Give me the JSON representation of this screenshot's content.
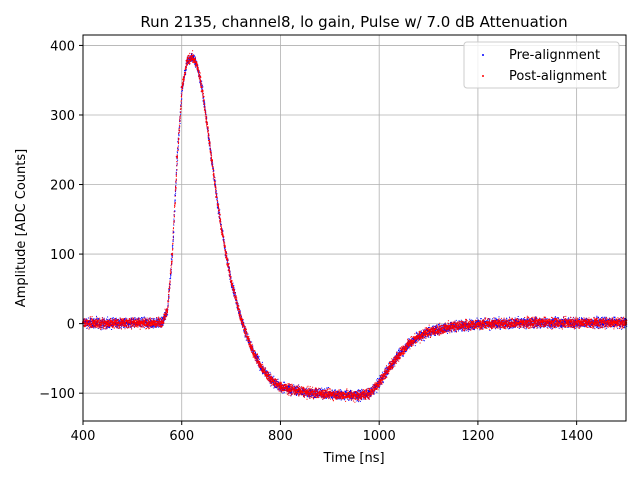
{
  "chart_data": {
    "type": "scatter",
    "title": "Run 2135, channel8, lo gain, Pulse w/ 7.0 dB Attenuation",
    "xlabel": "Time [ns]",
    "ylabel": "Amplitude [ADC Counts]",
    "xlim": [
      400,
      1500
    ],
    "ylim": [
      -140,
      415
    ],
    "xticks": [
      400,
      600,
      800,
      1000,
      1200,
      1400
    ],
    "yticks": [
      -100,
      0,
      100,
      200,
      300,
      400
    ],
    "grid": true,
    "legend_position": "top-right",
    "series": [
      {
        "name": "Pre-alignment",
        "color": "#0000ff",
        "marker": "point",
        "points": [
          [
            400,
            2
          ],
          [
            450,
            1
          ],
          [
            500,
            2
          ],
          [
            540,
            1
          ],
          [
            560,
            3
          ],
          [
            570,
            20
          ],
          [
            580,
            100
          ],
          [
            590,
            240
          ],
          [
            600,
            340
          ],
          [
            610,
            378
          ],
          [
            620,
            385
          ],
          [
            630,
            372
          ],
          [
            640,
            340
          ],
          [
            650,
            290
          ],
          [
            660,
            235
          ],
          [
            670,
            182
          ],
          [
            680,
            136
          ],
          [
            690,
            95
          ],
          [
            700,
            60
          ],
          [
            720,
            6
          ],
          [
            740,
            -35
          ],
          [
            760,
            -62
          ],
          [
            780,
            -80
          ],
          [
            800,
            -91
          ],
          [
            850,
            -98
          ],
          [
            900,
            -101
          ],
          [
            950,
            -103
          ],
          [
            980,
            -100
          ],
          [
            1000,
            -83
          ],
          [
            1020,
            -62
          ],
          [
            1040,
            -43
          ],
          [
            1060,
            -28
          ],
          [
            1080,
            -18
          ],
          [
            1100,
            -11
          ],
          [
            1150,
            -3
          ],
          [
            1200,
            0
          ],
          [
            1300,
            2
          ],
          [
            1400,
            2
          ],
          [
            1500,
            2
          ]
        ]
      },
      {
        "name": "Post-alignment",
        "color": "#ff0000",
        "marker": "point",
        "points": [
          [
            400,
            2
          ],
          [
            450,
            1
          ],
          [
            500,
            2
          ],
          [
            540,
            1
          ],
          [
            560,
            3
          ],
          [
            570,
            20
          ],
          [
            580,
            100
          ],
          [
            590,
            240
          ],
          [
            600,
            340
          ],
          [
            610,
            378
          ],
          [
            620,
            385
          ],
          [
            630,
            372
          ],
          [
            640,
            340
          ],
          [
            650,
            290
          ],
          [
            660,
            235
          ],
          [
            670,
            182
          ],
          [
            680,
            136
          ],
          [
            690,
            95
          ],
          [
            700,
            60
          ],
          [
            720,
            6
          ],
          [
            740,
            -35
          ],
          [
            760,
            -62
          ],
          [
            780,
            -80
          ],
          [
            800,
            -91
          ],
          [
            850,
            -98
          ],
          [
            900,
            -101
          ],
          [
            950,
            -103
          ],
          [
            980,
            -100
          ],
          [
            1000,
            -83
          ],
          [
            1020,
            -62
          ],
          [
            1040,
            -43
          ],
          [
            1060,
            -28
          ],
          [
            1080,
            -18
          ],
          [
            1100,
            -11
          ],
          [
            1150,
            -3
          ],
          [
            1200,
            0
          ],
          [
            1300,
            2
          ],
          [
            1400,
            2
          ],
          [
            1500,
            2
          ]
        ]
      }
    ]
  }
}
